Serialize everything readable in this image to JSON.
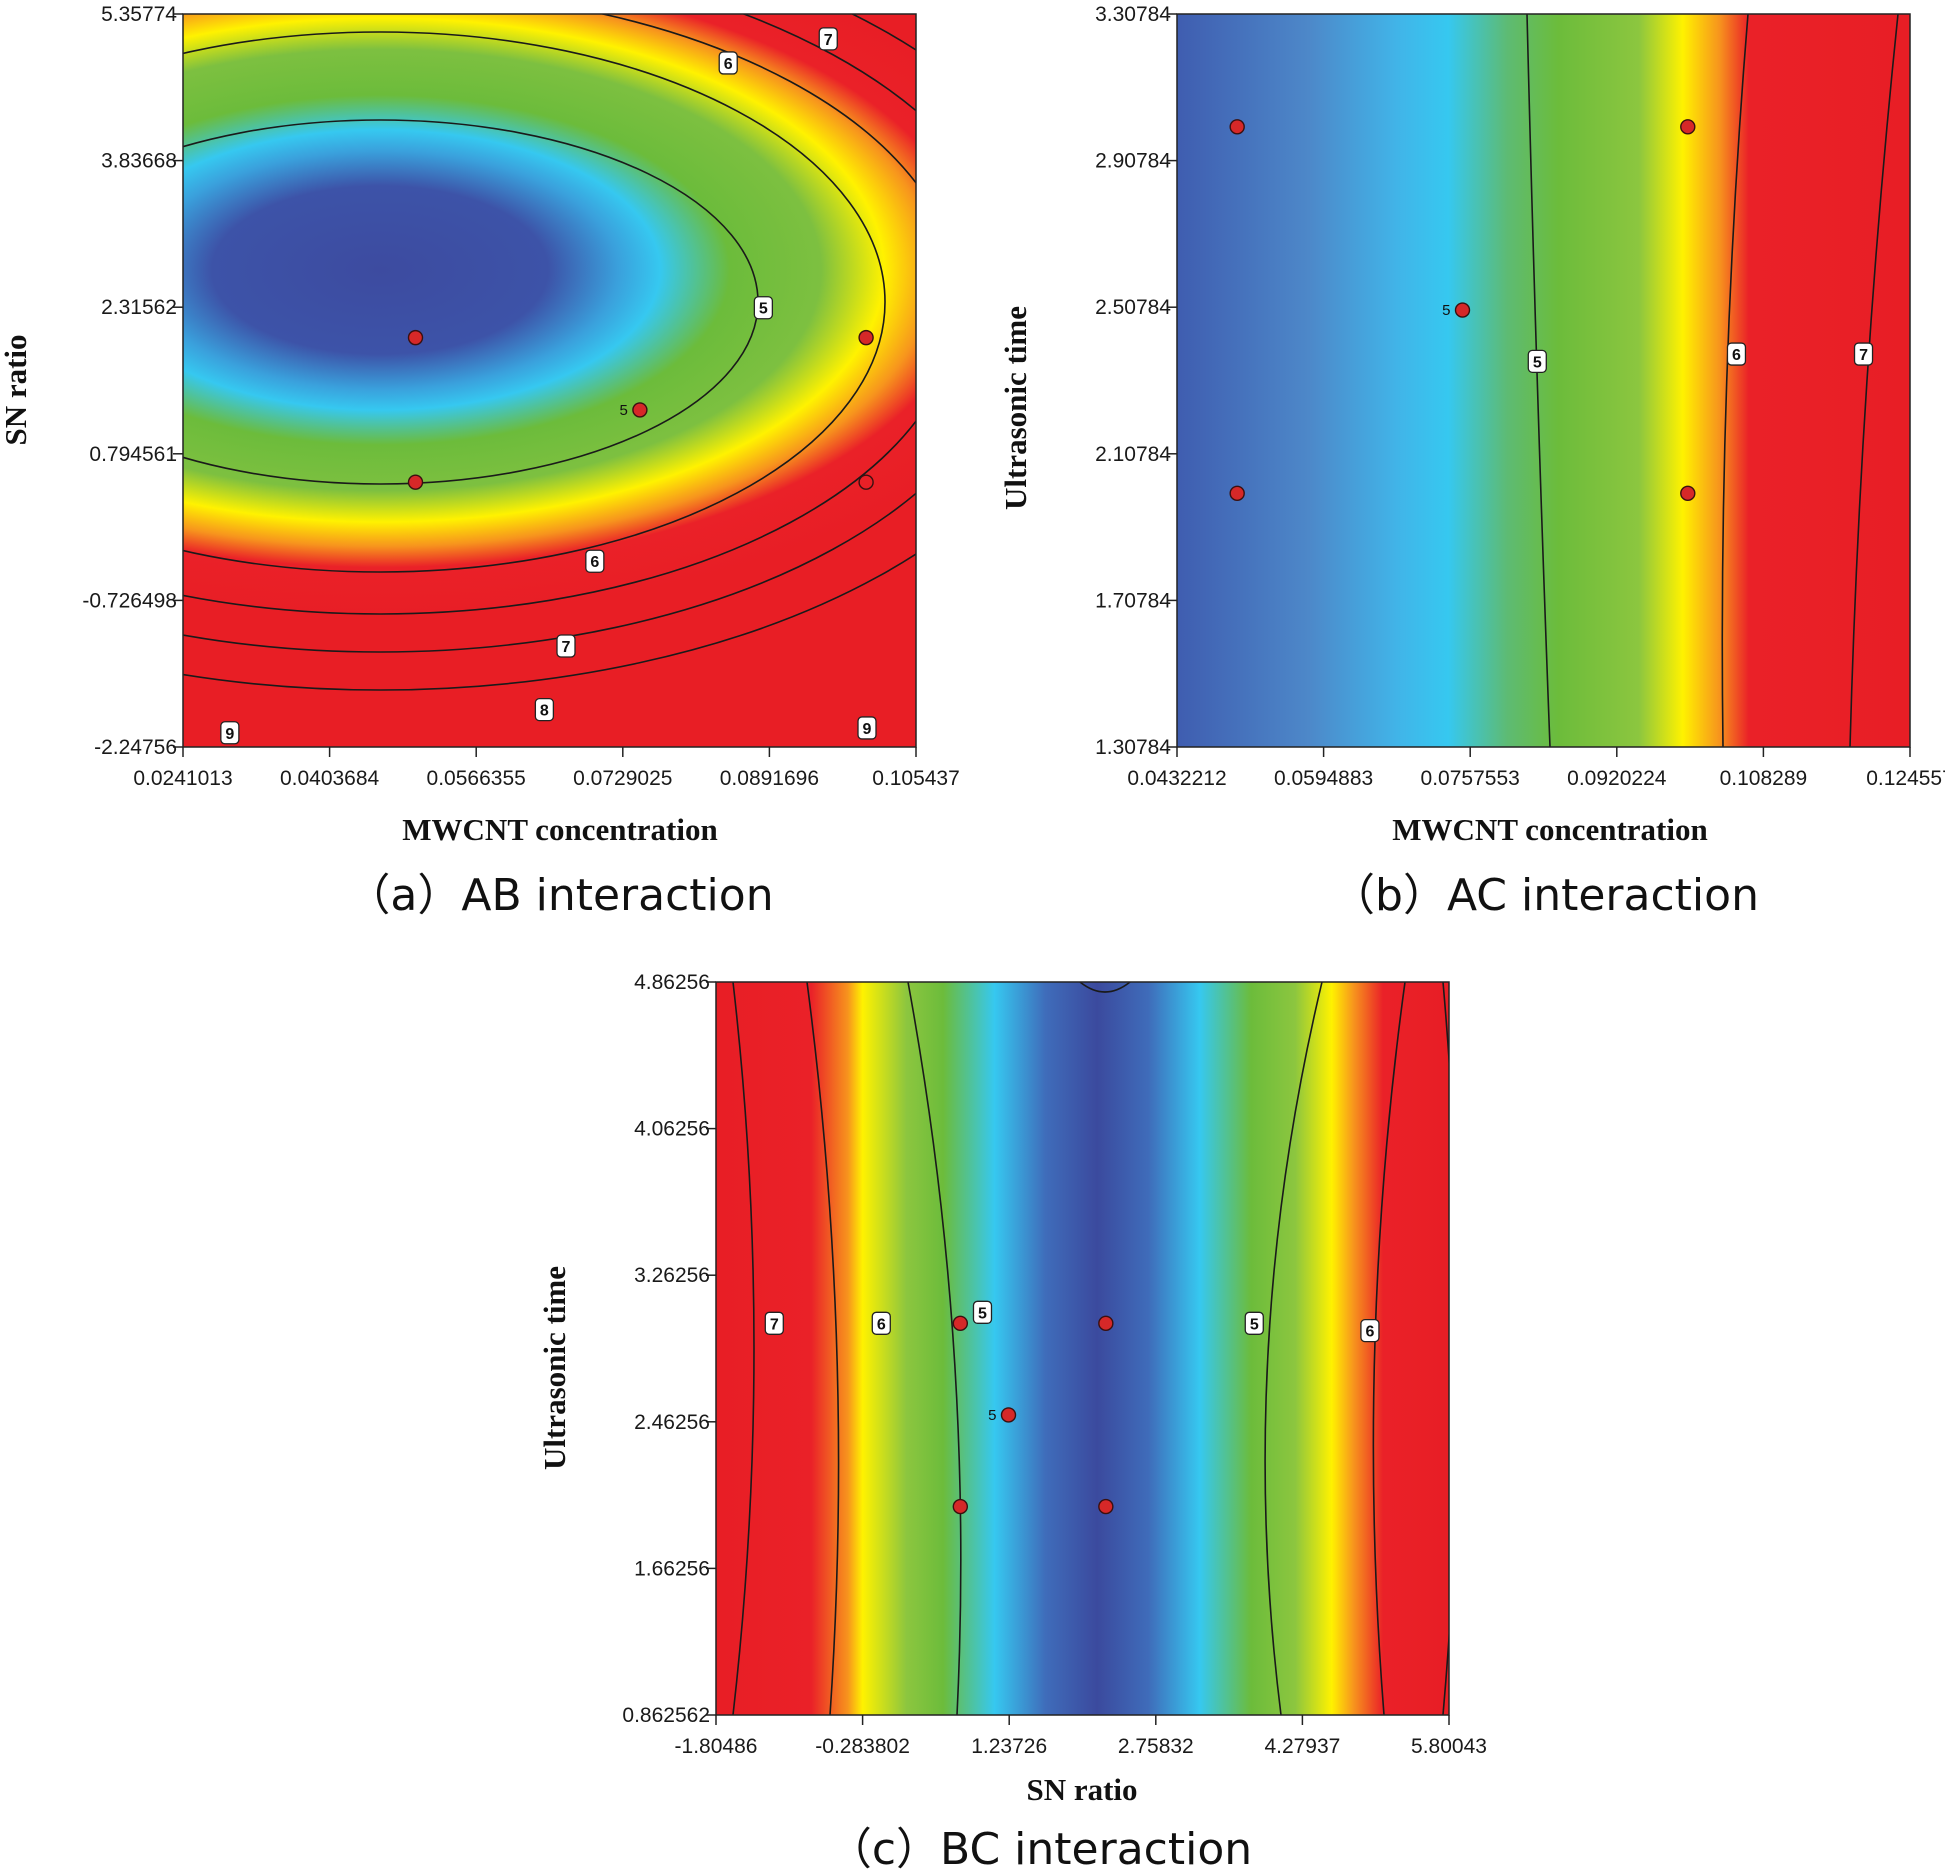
{
  "colors": {
    "deep_blue": "#3b4a9e",
    "cyan": "#33c2ee",
    "green": "#6cbc3b",
    "yellow": "#fff200",
    "red": "#ea2128",
    "point": "#d62828"
  },
  "chart_data": [
    {
      "type": "contour",
      "caption": "（a）AB interaction",
      "xlabel": "MWCNT concentration",
      "ylabel": "SN ratio",
      "xlim": [
        0.0241013,
        0.105437
      ],
      "ylim": [
        -2.24756,
        5.35774
      ],
      "x_ticks": [
        "0.0241013",
        "0.0403684",
        "0.0566355",
        "0.0729025",
        "0.0891696",
        "0.105437"
      ],
      "y_ticks": [
        "-2.24756",
        "-0.726498",
        "0.794561",
        "2.31562",
        "3.83668",
        "5.35774"
      ],
      "contour_levels": [
        5,
        6,
        7,
        8,
        9
      ],
      "contour_labels": [
        {
          "text": "5",
          "x": 0.0885,
          "y": 2.31
        },
        {
          "text": "6",
          "x": 0.0846,
          "y": 4.85
        },
        {
          "text": "7",
          "x": 0.0957,
          "y": 5.1
        },
        {
          "text": "6",
          "x": 0.0698,
          "y": -0.32
        },
        {
          "text": "7",
          "x": 0.0666,
          "y": -1.2
        },
        {
          "text": "8",
          "x": 0.0642,
          "y": -1.86
        },
        {
          "text": "9",
          "x": 0.0293,
          "y": -2.1
        },
        {
          "text": "9",
          "x": 0.1,
          "y": -2.05
        }
      ],
      "design_points": [
        {
          "x": 0.0499,
          "y": 2.0,
          "label": ""
        },
        {
          "x": 0.0999,
          "y": 2.0,
          "label": ""
        },
        {
          "x": 0.0748,
          "y": 1.25,
          "label": "5"
        },
        {
          "x": 0.0499,
          "y": 0.5,
          "label": ""
        },
        {
          "x": 0.0999,
          "y": 0.5,
          "label": "",
          "hollow": true
        }
      ]
    },
    {
      "type": "contour",
      "caption": "（b）AC interaction",
      "xlabel": "MWCNT concentration",
      "ylabel": "Ultrasonic time",
      "xlim": [
        0.0432212,
        0.124557
      ],
      "ylim": [
        1.30784,
        3.30784
      ],
      "x_ticks": [
        "0.0432212",
        "0.0594883",
        "0.0757553",
        "0.0920224",
        "0.108289",
        "0.124557"
      ],
      "y_ticks": [
        "1.30784",
        "1.70784",
        "2.10784",
        "2.50784",
        "2.90784",
        "3.30784"
      ],
      "contour_levels": [
        5,
        6,
        7
      ],
      "contour_labels": [
        {
          "text": "5",
          "x": 0.0832,
          "y": 2.36
        },
        {
          "text": "6",
          "x": 0.1053,
          "y": 2.38
        },
        {
          "text": "7",
          "x": 0.1194,
          "y": 2.38
        }
      ],
      "design_points": [
        {
          "x": 0.0499,
          "y": 3.0,
          "label": ""
        },
        {
          "x": 0.0999,
          "y": 3.0,
          "label": ""
        },
        {
          "x": 0.0749,
          "y": 2.5,
          "label": "5"
        },
        {
          "x": 0.0499,
          "y": 2.0,
          "label": ""
        },
        {
          "x": 0.0999,
          "y": 2.0,
          "label": ""
        }
      ]
    },
    {
      "type": "contour",
      "caption": "（c）BC interaction",
      "xlabel": "SN ratio",
      "ylabel": "Ultrasonic time",
      "xlim": [
        -1.80486,
        5.80043
      ],
      "ylim": [
        0.862562,
        4.86256
      ],
      "x_ticks": [
        "-1.80486",
        "-0.283802",
        "1.23726",
        "2.75832",
        "4.27937",
        "5.80043"
      ],
      "y_ticks": [
        "0.862562",
        "1.66256",
        "2.46256",
        "3.26256",
        "4.06256",
        "4.86256"
      ],
      "contour_levels": [
        5,
        6,
        7
      ],
      "contour_labels": [
        {
          "text": "7",
          "x": -1.2,
          "y": 3.0
        },
        {
          "text": "6",
          "x": -0.09,
          "y": 3.0
        },
        {
          "text": "5",
          "x": 0.96,
          "y": 3.06
        },
        {
          "text": "5",
          "x": 3.78,
          "y": 3.0
        },
        {
          "text": "6",
          "x": 4.98,
          "y": 2.96
        }
      ],
      "design_points": [
        {
          "x": 0.73,
          "y": 3.0,
          "label": ""
        },
        {
          "x": 2.24,
          "y": 3.0,
          "label": ""
        },
        {
          "x": 1.23,
          "y": 2.5,
          "label": "5"
        },
        {
          "x": 0.73,
          "y": 2.0,
          "label": ""
        },
        {
          "x": 2.24,
          "y": 2.0,
          "label": ""
        }
      ]
    }
  ]
}
